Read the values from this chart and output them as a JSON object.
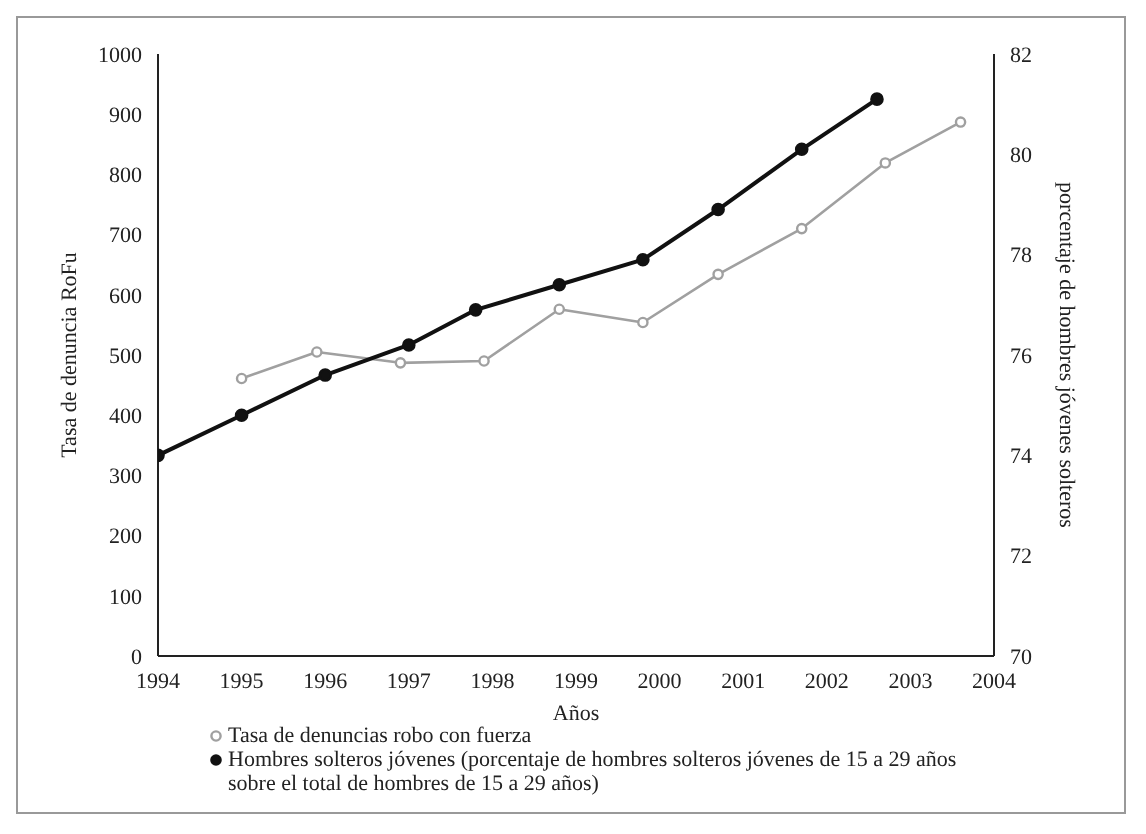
{
  "chart_data": {
    "type": "line",
    "xlabel": "Años",
    "ylabel": "Tasa de denuncia RoFu",
    "y2label": "porcentaje de hombres jóvenes solteros",
    "xlim": [
      1994,
      2004
    ],
    "xticks": [
      1994,
      1995,
      1996,
      1997,
      1998,
      1999,
      2000,
      2001,
      2002,
      2003,
      2004
    ],
    "ylim": [
      0,
      1000
    ],
    "yticks": [
      0,
      100,
      200,
      300,
      400,
      500,
      600,
      700,
      800,
      900,
      1000
    ],
    "y2lim": [
      70,
      82
    ],
    "y2ticks": [
      70,
      72,
      74,
      76,
      78,
      80,
      82
    ],
    "series": [
      {
        "name": "Tasa de denuncias robo con fuerza",
        "color": "#a0a0a0",
        "x": [
          1995.0,
          1995.9,
          1996.9,
          1997.9,
          1998.8,
          1999.8,
          2000.7,
          2001.7,
          2002.7,
          2003.6
        ],
        "values": [
          461,
          505,
          487,
          490,
          576,
          554,
          634,
          710,
          819,
          887
        ]
      },
      {
        "name": "Hombres solteros jóvenes (porcentaje de hombres solteros jóvenes de 15 a 29 años sobre  el total de hombres de 15 a 29 años)",
        "color": "#111111",
        "axis": "y2",
        "x": [
          1994.0,
          1995.0,
          1996.0,
          1997.0,
          1997.8,
          1998.8,
          1999.8,
          2000.7,
          2001.7,
          2002.6
        ],
        "values": [
          74.0,
          74.8,
          75.6,
          76.2,
          76.9,
          77.4,
          77.9,
          78.9,
          80.1,
          81.1
        ]
      }
    ],
    "legend": "bottom",
    "marker": "circle",
    "line_style": "solid"
  }
}
